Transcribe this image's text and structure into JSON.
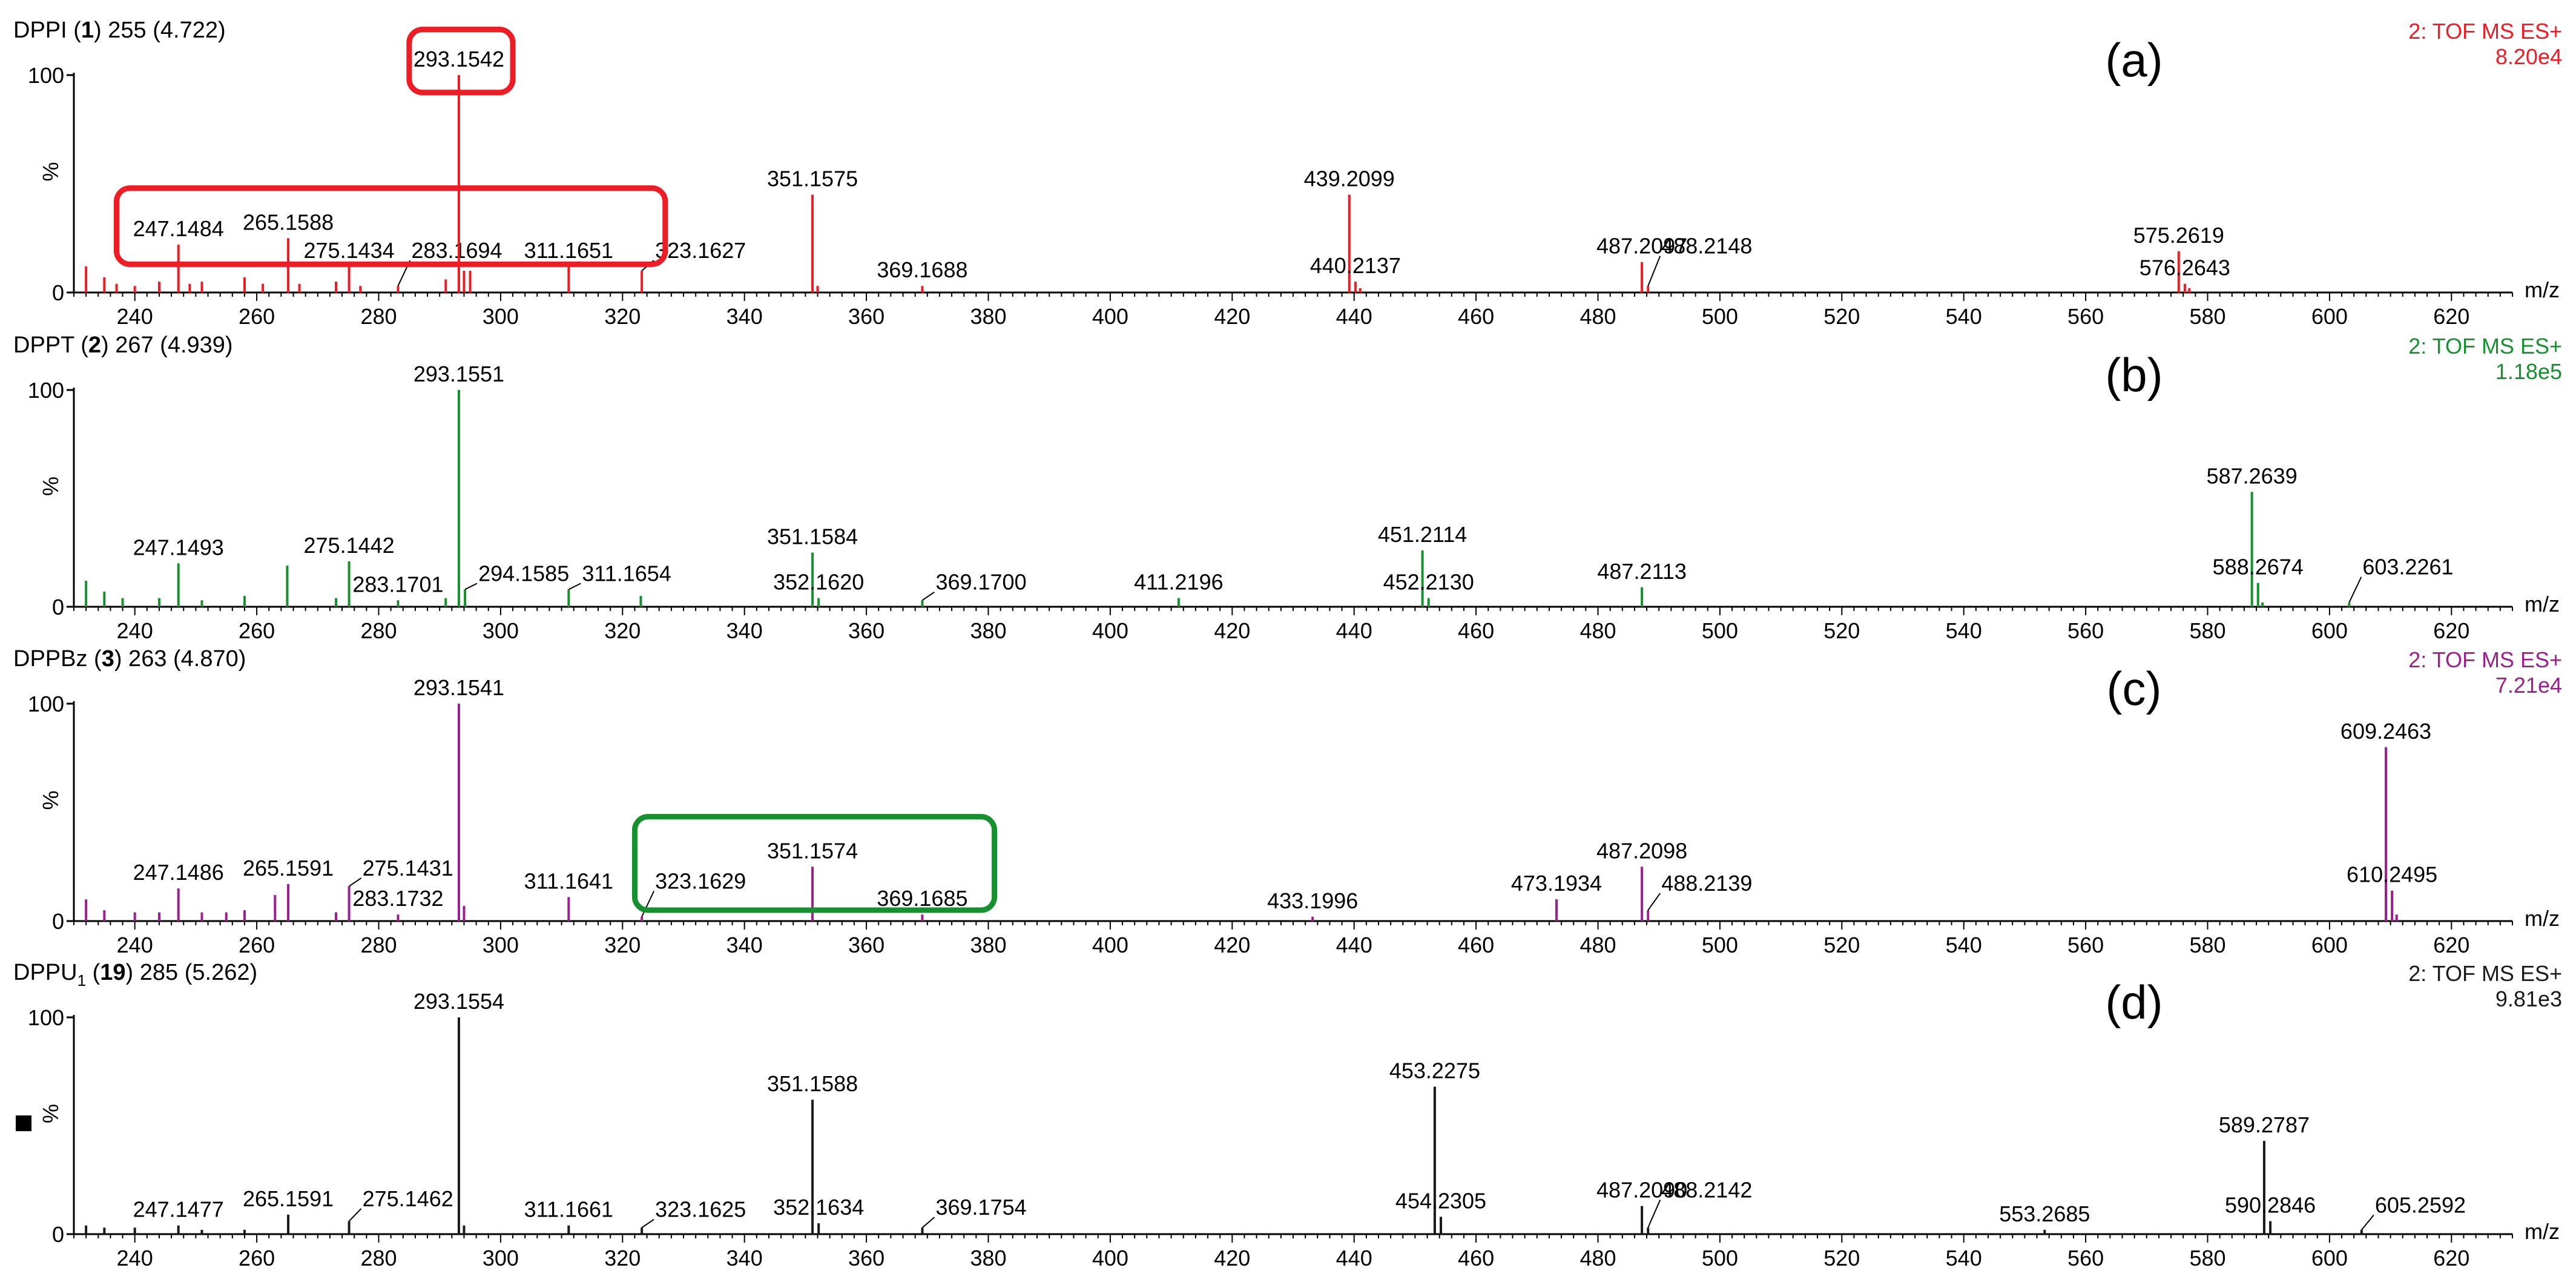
{
  "chart_data": [
    {
      "type": "bar",
      "panel_label": "(a)",
      "color": "#ee1c25",
      "title_prefix": "DPPI (",
      "title_compound": "1",
      "title_sub": "",
      "title_suffix": ") 255 (4.722)",
      "mode_label": "2: TOF MS ES+",
      "max_intensity": "8.20e4",
      "ylabel": "%",
      "y_top_label": "100",
      "y_zero_label": "0",
      "xlabel": "m/z",
      "xlim": [
        230,
        630
      ],
      "ylim": [
        0,
        100
      ],
      "x_ticks": [
        240,
        260,
        280,
        300,
        320,
        340,
        360,
        380,
        400,
        420,
        440,
        460,
        480,
        500,
        520,
        540,
        560,
        580,
        600,
        620
      ],
      "labeled_peaks": [
        {
          "mz": 247.1484,
          "intensity": 22,
          "label": "247.1484"
        },
        {
          "mz": 265.1588,
          "intensity": 25,
          "label": "265.1588"
        },
        {
          "mz": 275.1434,
          "intensity": 12,
          "label": "275.1434"
        },
        {
          "mz": 283.1694,
          "intensity": 3,
          "label": "283.1694"
        },
        {
          "mz": 293.1542,
          "intensity": 100,
          "label": "293.1542"
        },
        {
          "mz": 311.1651,
          "intensity": 12,
          "label": "311.1651"
        },
        {
          "mz": 323.1627,
          "intensity": 10,
          "label": "323.1627"
        },
        {
          "mz": 351.1575,
          "intensity": 45,
          "label": "351.1575"
        },
        {
          "mz": 369.1688,
          "intensity": 3,
          "label": "369.1688"
        },
        {
          "mz": 439.2099,
          "intensity": 45,
          "label": "439.2099"
        },
        {
          "mz": 440.2137,
          "intensity": 5,
          "label": "440.2137"
        },
        {
          "mz": 487.2097,
          "intensity": 14,
          "label": "487.2097"
        },
        {
          "mz": 488.2148,
          "intensity": 3,
          "label": "488.2148"
        },
        {
          "mz": 575.2619,
          "intensity": 19,
          "label": "575.2619"
        },
        {
          "mz": 576.2643,
          "intensity": 4,
          "label": "576.2643"
        }
      ],
      "minor_peaks": [
        {
          "mz": 232,
          "intensity": 12
        },
        {
          "mz": 235,
          "intensity": 7
        },
        {
          "mz": 237,
          "intensity": 4
        },
        {
          "mz": 240,
          "intensity": 3
        },
        {
          "mz": 244,
          "intensity": 5
        },
        {
          "mz": 249,
          "intensity": 4
        },
        {
          "mz": 251,
          "intensity": 5
        },
        {
          "mz": 258,
          "intensity": 7
        },
        {
          "mz": 261,
          "intensity": 4
        },
        {
          "mz": 267,
          "intensity": 4
        },
        {
          "mz": 273,
          "intensity": 5
        },
        {
          "mz": 277,
          "intensity": 3
        },
        {
          "mz": 291,
          "intensity": 6
        },
        {
          "mz": 294,
          "intensity": 10
        },
        {
          "mz": 295,
          "intensity": 10
        },
        {
          "mz": 352,
          "intensity": 3
        },
        {
          "mz": 441,
          "intensity": 2
        },
        {
          "mz": 577,
          "intensity": 2
        }
      ],
      "highlight_boxes": [
        {
          "mz_from": 237,
          "mz_to": 327,
          "y_from": 13,
          "y_to": 48,
          "color": "#ee1c25"
        },
        {
          "mz_from": 285,
          "mz_to": 302,
          "y_from": 92,
          "y_to": 121,
          "color": "#ee1c25"
        }
      ]
    },
    {
      "type": "bar",
      "panel_label": "(b)",
      "color": "#17902f",
      "title_prefix": "DPPT (",
      "title_compound": "2",
      "title_sub": "",
      "title_suffix": ") 267 (4.939)",
      "mode_label": "2: TOF MS ES+",
      "max_intensity": "1.18e5",
      "ylabel": "%",
      "y_top_label": "100",
      "y_zero_label": "0",
      "xlabel": "m/z",
      "xlim": [
        230,
        630
      ],
      "ylim": [
        0,
        100
      ],
      "x_ticks": [
        240,
        260,
        280,
        300,
        320,
        340,
        360,
        380,
        400,
        420,
        440,
        460,
        480,
        500,
        520,
        540,
        560,
        580,
        600,
        620
      ],
      "labeled_peaks": [
        {
          "mz": 247.1493,
          "intensity": 20,
          "label": "247.1493"
        },
        {
          "mz": 275.1442,
          "intensity": 21,
          "label": "275.1442"
        },
        {
          "mz": 283.1701,
          "intensity": 3,
          "label": "283.1701"
        },
        {
          "mz": 293.1551,
          "intensity": 100,
          "label": "293.1551"
        },
        {
          "mz": 294.1585,
          "intensity": 8,
          "label": "294.1585"
        },
        {
          "mz": 311.1654,
          "intensity": 8,
          "label": "311.1654"
        },
        {
          "mz": 351.1584,
          "intensity": 25,
          "label": "351.1584"
        },
        {
          "mz": 352.162,
          "intensity": 4,
          "label": "352.1620"
        },
        {
          "mz": 369.17,
          "intensity": 3,
          "label": "369.1700"
        },
        {
          "mz": 411.2196,
          "intensity": 4,
          "label": "411.2196"
        },
        {
          "mz": 451.2114,
          "intensity": 26,
          "label": "451.2114"
        },
        {
          "mz": 452.213,
          "intensity": 4,
          "label": "452.2130"
        },
        {
          "mz": 487.2113,
          "intensity": 9,
          "label": "487.2113"
        },
        {
          "mz": 587.2639,
          "intensity": 53,
          "label": "587.2639"
        },
        {
          "mz": 588.2674,
          "intensity": 11,
          "label": "588.2674"
        },
        {
          "mz": 603.2261,
          "intensity": 2,
          "label": "603.2261"
        }
      ],
      "minor_peaks": [
        {
          "mz": 232,
          "intensity": 12
        },
        {
          "mz": 235,
          "intensity": 7
        },
        {
          "mz": 238,
          "intensity": 4
        },
        {
          "mz": 244,
          "intensity": 4
        },
        {
          "mz": 251,
          "intensity": 3
        },
        {
          "mz": 258,
          "intensity": 5
        },
        {
          "mz": 265,
          "intensity": 19
        },
        {
          "mz": 273,
          "intensity": 4
        },
        {
          "mz": 323,
          "intensity": 5
        },
        {
          "mz": 291,
          "intensity": 4
        },
        {
          "mz": 589,
          "intensity": 2
        }
      ],
      "highlight_boxes": []
    },
    {
      "type": "bar",
      "panel_label": "(c)",
      "color": "#9b1f8c",
      "title_prefix": "DPPBz (",
      "title_compound": "3",
      "title_sub": "",
      "title_suffix": ") 263 (4.870)",
      "mode_label": "2: TOF MS ES+",
      "max_intensity": "7.21e4",
      "ylabel": "%",
      "y_top_label": "100",
      "y_zero_label": "0",
      "xlabel": "m/z",
      "xlim": [
        230,
        630
      ],
      "ylim": [
        0,
        100
      ],
      "x_ticks": [
        240,
        260,
        280,
        300,
        320,
        340,
        360,
        380,
        400,
        420,
        440,
        460,
        480,
        500,
        520,
        540,
        560,
        580,
        600,
        620
      ],
      "labeled_peaks": [
        {
          "mz": 247.1486,
          "intensity": 15,
          "label": "247.1486"
        },
        {
          "mz": 265.1591,
          "intensity": 17,
          "label": "265.1591"
        },
        {
          "mz": 275.1431,
          "intensity": 16,
          "label": "275.1431"
        },
        {
          "mz": 283.1732,
          "intensity": 3,
          "label": "283.1732"
        },
        {
          "mz": 293.1541,
          "intensity": 100,
          "label": "293.1541"
        },
        {
          "mz": 311.1641,
          "intensity": 11,
          "label": "311.1641"
        },
        {
          "mz": 323.1629,
          "intensity": 2,
          "label": "323.1629"
        },
        {
          "mz": 351.1574,
          "intensity": 25,
          "label": "351.1574"
        },
        {
          "mz": 369.1685,
          "intensity": 3,
          "label": "369.1685"
        },
        {
          "mz": 433.1996,
          "intensity": 2,
          "label": "433.1996"
        },
        {
          "mz": 473.1934,
          "intensity": 10,
          "label": "473.1934"
        },
        {
          "mz": 487.2098,
          "intensity": 25,
          "label": "487.2098"
        },
        {
          "mz": 488.2139,
          "intensity": 5,
          "label": "488.2139"
        },
        {
          "mz": 609.2463,
          "intensity": 80,
          "label": "609.2463"
        },
        {
          "mz": 610.2495,
          "intensity": 14,
          "label": "610.2495"
        }
      ],
      "minor_peaks": [
        {
          "mz": 232,
          "intensity": 10
        },
        {
          "mz": 235,
          "intensity": 5
        },
        {
          "mz": 240,
          "intensity": 4
        },
        {
          "mz": 244,
          "intensity": 4
        },
        {
          "mz": 251,
          "intensity": 4
        },
        {
          "mz": 255,
          "intensity": 4
        },
        {
          "mz": 258,
          "intensity": 5
        },
        {
          "mz": 263,
          "intensity": 12
        },
        {
          "mz": 294,
          "intensity": 7
        },
        {
          "mz": 273,
          "intensity": 4
        },
        {
          "mz": 611,
          "intensity": 3
        }
      ],
      "highlight_boxes": [
        {
          "mz_from": 322,
          "mz_to": 381,
          "y_from": 5,
          "y_to": 48,
          "color": "#17902f"
        }
      ]
    },
    {
      "type": "bar",
      "panel_label": "(d)",
      "color": "#1a1a1a",
      "title_prefix": "DPPU",
      "title_compound": "19",
      "title_sub": "1",
      "title_suffix": ") 285 (5.262)",
      "mode_label": "2: TOF MS ES+",
      "max_intensity": "9.81e3",
      "ylabel": "%",
      "y_top_label": "100",
      "y_zero_label": "0",
      "xlabel": "m/z",
      "xlim": [
        230,
        630
      ],
      "ylim": [
        0,
        100
      ],
      "x_ticks": [
        240,
        260,
        280,
        300,
        320,
        340,
        360,
        380,
        400,
        420,
        440,
        460,
        480,
        500,
        520,
        540,
        560,
        580,
        600,
        620
      ],
      "labeled_peaks": [
        {
          "mz": 247.1477,
          "intensity": 4,
          "label": "247.1477"
        },
        {
          "mz": 265.1591,
          "intensity": 9,
          "label": "265.1591"
        },
        {
          "mz": 275.1462,
          "intensity": 6,
          "label": "275.1462"
        },
        {
          "mz": 293.1554,
          "intensity": 100,
          "label": "293.1554"
        },
        {
          "mz": 311.1661,
          "intensity": 4,
          "label": "311.1661"
        },
        {
          "mz": 323.1625,
          "intensity": 3,
          "label": "323.1625"
        },
        {
          "mz": 351.1588,
          "intensity": 62,
          "label": "351.1588"
        },
        {
          "mz": 352.1634,
          "intensity": 5,
          "label": "352.1634"
        },
        {
          "mz": 369.1754,
          "intensity": 3,
          "label": "369.1754"
        },
        {
          "mz": 453.2275,
          "intensity": 68,
          "label": "453.2275"
        },
        {
          "mz": 454.2305,
          "intensity": 8,
          "label": "454.2305"
        },
        {
          "mz": 487.209,
          "intensity": 13,
          "label": "487.2090"
        },
        {
          "mz": 488.2142,
          "intensity": 3,
          "label": "488.2142"
        },
        {
          "mz": 553.2685,
          "intensity": 2,
          "label": "553.2685"
        },
        {
          "mz": 589.2787,
          "intensity": 43,
          "label": "589.2787"
        },
        {
          "mz": 590.2846,
          "intensity": 6,
          "label": "590.2846"
        },
        {
          "mz": 605.2592,
          "intensity": 2,
          "label": "605.2592"
        }
      ],
      "minor_peaks": [
        {
          "mz": 232,
          "intensity": 4
        },
        {
          "mz": 235,
          "intensity": 3
        },
        {
          "mz": 240,
          "intensity": 3
        },
        {
          "mz": 251,
          "intensity": 2
        },
        {
          "mz": 258,
          "intensity": 2
        },
        {
          "mz": 294,
          "intensity": 4
        }
      ],
      "highlight_boxes": []
    }
  ]
}
